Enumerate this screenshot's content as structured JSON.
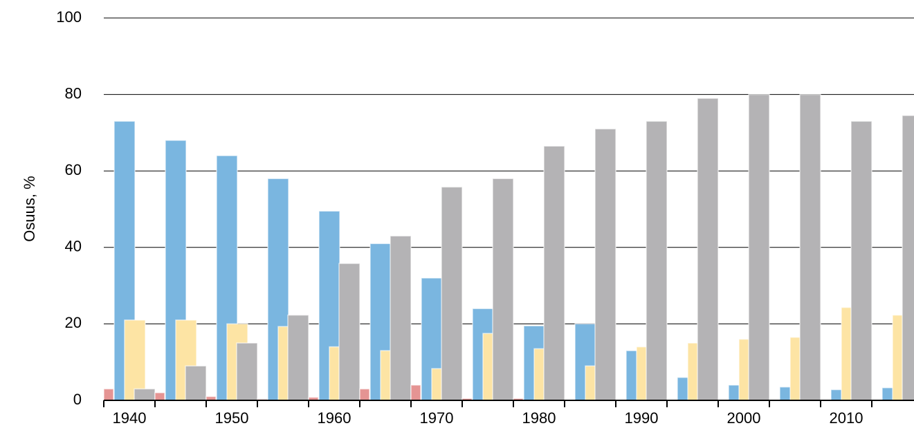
{
  "chart_data": {
    "type": "bar",
    "y_label": "Osuus, %",
    "categories": [
      "1940",
      null,
      "1950",
      null,
      "1960",
      null,
      "1970",
      null,
      "1980",
      null,
      "1990",
      null,
      "2000",
      null,
      "2010",
      null
    ],
    "series": [
      {
        "color": "#e59493",
        "values": [
          3,
          2,
          1,
          0.3,
          0.8,
          3,
          4,
          0.5,
          0.5,
          0,
          0,
          0,
          0,
          0,
          0,
          0
        ]
      },
      {
        "color": "#7ab6e0",
        "values": [
          73,
          68,
          64,
          58,
          49.5,
          41,
          32,
          24,
          19.5,
          20,
          13,
          6,
          4,
          3.5,
          2.8,
          3.3
        ]
      },
      {
        "color": "#fde4a4",
        "values": [
          21,
          21,
          20,
          19.3,
          14,
          13,
          8.3,
          17.5,
          13.5,
          9,
          14,
          15,
          16,
          16.5,
          24.3,
          22.3
        ]
      },
      {
        "color": "#b4b3b5",
        "values": [
          3,
          9,
          15,
          22.3,
          35.8,
          43,
          55.8,
          58,
          66.5,
          71,
          73,
          79,
          80,
          80,
          73,
          74.5
        ]
      }
    ],
    "ylim": [
      0,
      100
    ],
    "yticks": [
      0,
      20,
      40,
      60,
      80,
      100
    ],
    "grid": true
  }
}
